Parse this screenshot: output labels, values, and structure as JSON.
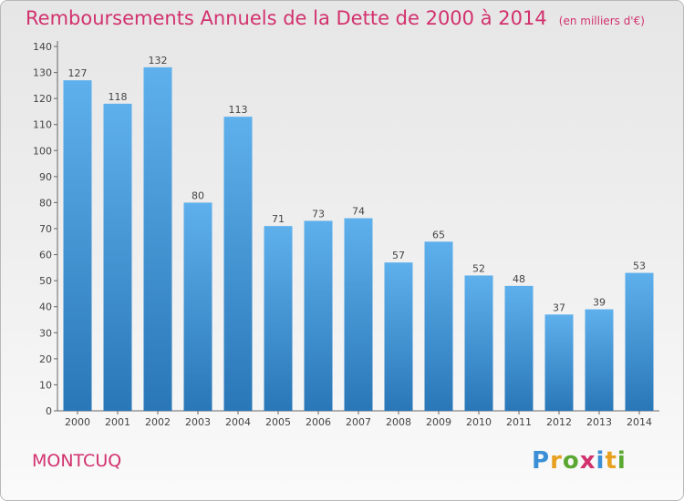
{
  "title": "Remboursements Annuels de la Dette de 2000 à 2014",
  "unit_note": "(en milliers d'€)",
  "town": "MONTCUQ",
  "logo": {
    "text": "Proxiti",
    "colors": [
      "#3a8fd6",
      "#e8a020",
      "#5aa832",
      "#d2316e",
      "#3a8fd6",
      "#e8a020",
      "#5aa832"
    ]
  },
  "colors": {
    "bar_top": "#5eb0ec",
    "bar_bottom": "#2a77b8",
    "title": "#d2316e"
  },
  "chart_data": {
    "type": "bar",
    "categories": [
      "2000",
      "2001",
      "2002",
      "2003",
      "2004",
      "2005",
      "2006",
      "2007",
      "2008",
      "2009",
      "2010",
      "2011",
      "2012",
      "2013",
      "2014"
    ],
    "values": [
      127,
      118,
      132,
      80,
      113,
      71,
      73,
      74,
      57,
      65,
      52,
      48,
      37,
      39,
      53
    ],
    "ylim": [
      0,
      140
    ],
    "yticks": [
      0,
      10,
      20,
      30,
      40,
      50,
      60,
      70,
      80,
      90,
      100,
      110,
      120,
      130,
      140
    ],
    "grid": false,
    "legend": "none"
  }
}
